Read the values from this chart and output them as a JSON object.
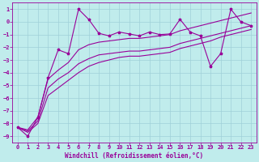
{
  "background_color": "#c0ecec",
  "grid_color": "#a0d0d8",
  "line_color": "#990099",
  "xlabel": "Windchill (Refroidissement éolien,°C)",
  "xlim": [
    -0.5,
    23.5
  ],
  "ylim": [
    -9.5,
    1.5
  ],
  "xticks": [
    0,
    1,
    2,
    3,
    4,
    5,
    6,
    7,
    8,
    9,
    10,
    11,
    12,
    13,
    14,
    15,
    16,
    17,
    18,
    19,
    20,
    21,
    22,
    23
  ],
  "yticks": [
    1,
    0,
    -1,
    -2,
    -3,
    -4,
    -5,
    -6,
    -7,
    -8,
    -9
  ],
  "tick_fontsize": 5,
  "xlabel_fontsize": 5.5,
  "series1_x": [
    0,
    1,
    2,
    3,
    4,
    5,
    6,
    7,
    8,
    9,
    10,
    11,
    12,
    13,
    14,
    15,
    16,
    17,
    18,
    19,
    20,
    21,
    22,
    23
  ],
  "series1_y": [
    -8.3,
    -9.0,
    -7.5,
    -4.4,
    -2.2,
    -2.5,
    1.0,
    0.2,
    -0.9,
    -1.1,
    -0.8,
    -0.95,
    -1.1,
    -0.8,
    -1.0,
    -0.95,
    0.2,
    -0.8,
    -1.1,
    -3.5,
    -2.5,
    1.0,
    0.0,
    -0.3
  ],
  "series2_x": [
    0,
    1,
    2,
    3,
    4,
    5,
    6,
    7,
    8,
    9,
    10,
    11,
    12,
    13,
    14,
    15,
    16,
    17,
    18,
    19,
    20,
    21,
    22,
    23
  ],
  "series2_y": [
    -8.3,
    -8.5,
    -7.5,
    -4.5,
    -3.8,
    -3.2,
    -2.2,
    -1.8,
    -1.6,
    -1.5,
    -1.4,
    -1.3,
    -1.3,
    -1.2,
    -1.1,
    -1.0,
    -0.7,
    -0.5,
    -0.3,
    -0.1,
    0.1,
    0.3,
    0.5,
    0.7
  ],
  "series3_x": [
    0,
    1,
    2,
    3,
    4,
    5,
    6,
    7,
    8,
    9,
    10,
    11,
    12,
    13,
    14,
    15,
    16,
    17,
    18,
    19,
    20,
    21,
    22,
    23
  ],
  "series3_y": [
    -8.3,
    -8.6,
    -7.8,
    -5.2,
    -4.5,
    -4.0,
    -3.3,
    -2.9,
    -2.6,
    -2.5,
    -2.4,
    -2.3,
    -2.3,
    -2.2,
    -2.1,
    -2.0,
    -1.7,
    -1.5,
    -1.3,
    -1.1,
    -0.9,
    -0.7,
    -0.5,
    -0.3
  ],
  "series4_x": [
    0,
    1,
    2,
    3,
    4,
    5,
    6,
    7,
    8,
    9,
    10,
    11,
    12,
    13,
    14,
    15,
    16,
    17,
    18,
    19,
    20,
    21,
    22,
    23
  ],
  "series4_y": [
    -8.3,
    -8.7,
    -8.0,
    -5.8,
    -5.2,
    -4.6,
    -4.0,
    -3.5,
    -3.2,
    -3.0,
    -2.8,
    -2.7,
    -2.7,
    -2.6,
    -2.5,
    -2.4,
    -2.1,
    -1.9,
    -1.7,
    -1.5,
    -1.2,
    -1.0,
    -0.8,
    -0.6
  ]
}
